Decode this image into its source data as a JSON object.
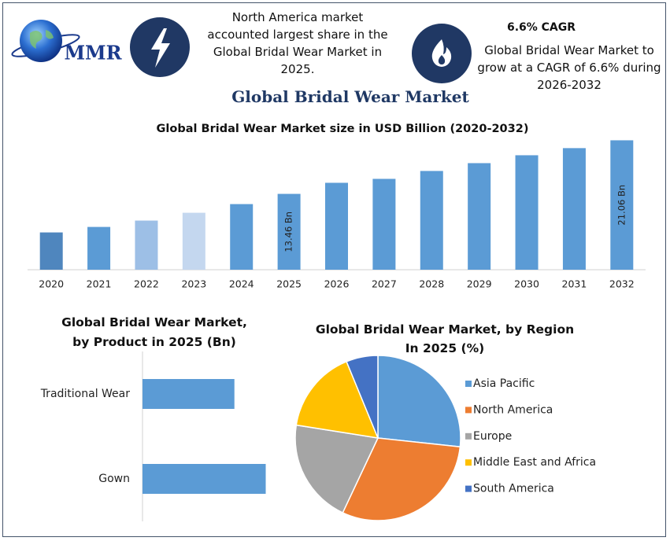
{
  "header": {
    "logo_text": "MMR",
    "fact_1": "North America market accounted largest share in the Global Bridal Wear Market in 2025.",
    "fact_2_title": "6.6% CAGR",
    "fact_2": "Global Bridal Wear Market to grow at a CAGR of 6.6% during 2026-2032"
  },
  "title": "Global Bridal Wear Market",
  "chart_data": [
    {
      "type": "bar",
      "title": "Global Bridal Wear Market size in USD Billion (2020-2032)",
      "categories": [
        "2020",
        "2021",
        "2022",
        "2023",
        "2024",
        "2025",
        "2026",
        "2027",
        "2028",
        "2029",
        "2030",
        "2031",
        "2032"
      ],
      "values": [
        7.99,
        8.77,
        9.67,
        10.78,
        12.01,
        13.46,
        15.03,
        15.59,
        16.71,
        17.82,
        18.94,
        19.95,
        21.06
      ],
      "value_labels": [
        null,
        null,
        null,
        null,
        null,
        "13.46 Bn",
        null,
        null,
        null,
        null,
        null,
        null,
        "21.06 Bn"
      ],
      "colors": [
        "#4f86be",
        "#5b9bd5",
        "#9dbfe6",
        "#c4d7ef",
        "#5b9bd5",
        "#5b9bd5",
        "#5b9bd5",
        "#5b9bd5",
        "#5b9bd5",
        "#5b9bd5",
        "#5b9bd5",
        "#5b9bd5",
        "#5b9bd5"
      ],
      "ylim": [
        2.7,
        22
      ]
    },
    {
      "type": "barh",
      "title": "Global Bridal Wear Market, by Product in 2025 (Bn)",
      "categories": [
        "Traditional Wear",
        "Gown"
      ],
      "values": [
        5.75,
        7.71
      ],
      "color": "#5b9bd5",
      "xlim": [
        0,
        10
      ]
    },
    {
      "type": "pie",
      "title": "Global Bridal Wear Market, by Region In 2025 (%)",
      "categories": [
        "Asia Pacific",
        "North America",
        "Europe",
        "Middle East and Africa",
        "South America"
      ],
      "values": [
        26.7,
        30.3,
        20.5,
        16.3,
        6.2
      ],
      "colors": [
        "#5b9bd5",
        "#ed7d31",
        "#a5a5a5",
        "#ffc000",
        "#4472c4"
      ],
      "legend": "right"
    }
  ]
}
